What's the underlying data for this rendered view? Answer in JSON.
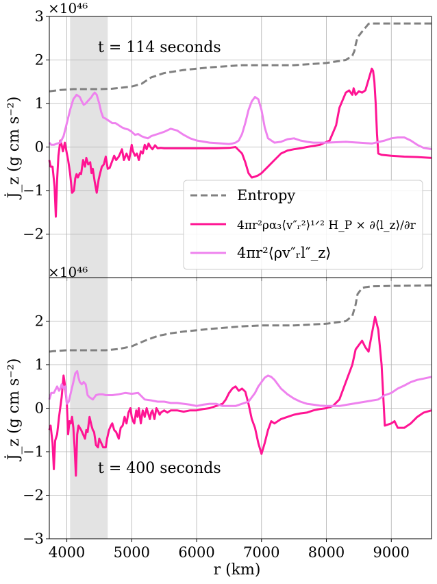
{
  "xlabel": "r (km)",
  "colors": {
    "entropy": "#808080",
    "term1": "#ff1493",
    "term2": "#ee82ee",
    "shade": "#e3e3e3"
  },
  "legend": {
    "placement": "lower-right of top panel",
    "entries": [
      {
        "label": "Entropy",
        "style": "dashed",
        "color": "#808080"
      },
      {
        "label": "4πr²ρα₃⟨v″ᵣ²⟩¹ᐟ² H_P × ∂⟨l_z⟩/∂r",
        "style": "solid",
        "color": "#ff1493"
      },
      {
        "label": "4πr²⟨ρv″ᵣl″_z⟩",
        "style": "solid",
        "color": "#ee82ee"
      }
    ]
  },
  "chart_data": [
    {
      "type": "line",
      "panel": "top",
      "annotation": "t = 114 seconds",
      "ylabel": "J̇_z (g cm s⁻²)",
      "y_scale_label": "×10⁴⁶",
      "xlim": [
        3730,
        9620
      ],
      "ylim": [
        -3,
        3
      ],
      "yticks": [
        3,
        2,
        1,
        0,
        -1,
        -2
      ],
      "xticks": [
        4000,
        5000,
        6000,
        7000,
        8000,
        9000
      ],
      "grid": true,
      "shaded_band": [
        4050,
        4630
      ],
      "series": [
        {
          "key": "entropy",
          "style": "dashed",
          "x": [
            3730,
            3900,
            4100,
            4500,
            4700,
            5000,
            5150,
            5300,
            5500,
            5800,
            6200,
            6700,
            7000,
            7500,
            8000,
            8300,
            8400,
            8430,
            8450,
            8480,
            8550,
            8650,
            8700,
            8800,
            9000,
            9300,
            9620
          ],
          "y": [
            1.28,
            1.31,
            1.33,
            1.33,
            1.34,
            1.39,
            1.45,
            1.6,
            1.7,
            1.77,
            1.83,
            1.88,
            1.88,
            1.88,
            1.93,
            2.0,
            2.1,
            2.2,
            2.35,
            2.52,
            2.65,
            2.83,
            2.84,
            2.84,
            2.84,
            2.84,
            2.84
          ]
        },
        {
          "key": "term1",
          "style": "solid",
          "x": [
            3730,
            3750,
            3780,
            3810,
            3830,
            3850,
            3870,
            3900,
            3920,
            3940,
            3970,
            4000,
            4020,
            4050,
            4080,
            4110,
            4130,
            4150,
            4170,
            4200,
            4220,
            4250,
            4280,
            4300,
            4330,
            4360,
            4380,
            4400,
            4430,
            4460,
            4490,
            4510,
            4540,
            4570,
            4600,
            4630,
            4660,
            4700,
            4730,
            4760,
            4800,
            4850,
            4880,
            4920,
            4960,
            5000,
            5020,
            5050,
            5080,
            5110,
            5140,
            5170,
            5200,
            5230,
            5260,
            5290,
            5320,
            5360,
            5400,
            5450,
            5500,
            5600,
            5800,
            6000,
            6300,
            6500,
            6600,
            6700,
            6750,
            6800,
            6850,
            6900,
            6950,
            7000,
            7100,
            7200,
            7300,
            7400,
            7500,
            7600,
            7700,
            7900,
            8050,
            8150,
            8200,
            8300,
            8350,
            8400,
            8420,
            8450,
            8500,
            8550,
            8600,
            8650,
            8700,
            8720,
            8740,
            8760,
            8780,
            8800,
            8850,
            9000,
            9200,
            9400,
            9620
          ],
          "y": [
            -0.3,
            -0.45,
            -0.45,
            -0.9,
            -1.6,
            -0.75,
            -0.2,
            0.15,
            0.05,
            -0.1,
            0.1,
            -0.15,
            -0.3,
            -0.6,
            -1.05,
            -1.0,
            -0.72,
            -0.62,
            -0.7,
            -0.6,
            -0.62,
            -0.3,
            -0.45,
            -0.25,
            -0.4,
            -0.35,
            -0.6,
            -0.5,
            -0.8,
            -1.05,
            -0.75,
            -0.62,
            -0.45,
            -0.4,
            -0.22,
            -0.5,
            -0.48,
            -0.32,
            -0.2,
            -0.3,
            -0.22,
            -0.05,
            -0.3,
            -0.15,
            -0.3,
            0.05,
            -0.1,
            -0.2,
            -0.15,
            -0.3,
            -0.1,
            -0.15,
            0.05,
            -0.05,
            0.08,
            0.0,
            -0.05,
            0.04,
            -0.03,
            -0.02,
            -0.03,
            -0.03,
            -0.03,
            -0.03,
            -0.03,
            -0.02,
            0.0,
            -0.15,
            -0.35,
            -0.6,
            -0.7,
            -0.68,
            -0.65,
            -0.6,
            -0.45,
            -0.3,
            -0.15,
            -0.08,
            -0.05,
            -0.03,
            0.0,
            0.05,
            0.15,
            0.5,
            0.9,
            1.25,
            1.3,
            1.2,
            1.35,
            1.2,
            1.28,
            1.25,
            1.3,
            1.55,
            1.8,
            1.75,
            1.5,
            1.0,
            0.3,
            -0.15,
            -0.18,
            -0.2,
            -0.22,
            -0.23,
            -0.25
          ]
        },
        {
          "key": "term2",
          "style": "solid",
          "x": [
            3730,
            3760,
            3800,
            3850,
            3900,
            3950,
            4000,
            4050,
            4100,
            4150,
            4200,
            4230,
            4260,
            4290,
            4320,
            4350,
            4380,
            4400,
            4430,
            4460,
            4500,
            4530,
            4560,
            4600,
            4650,
            4700,
            4750,
            4800,
            4850,
            4900,
            4950,
            5000,
            5050,
            5100,
            5150,
            5200,
            5250,
            5300,
            5400,
            5500,
            5600,
            5700,
            5800,
            5900,
            6000,
            6200,
            6400,
            6500,
            6550,
            6600,
            6650,
            6700,
            6750,
            6800,
            6850,
            6900,
            6950,
            7000,
            7050,
            7100,
            7200,
            7300,
            7400,
            7500,
            7600,
            7700,
            7800,
            8000,
            8300,
            8500,
            8700,
            8900,
            9000,
            9100,
            9200,
            9300,
            9400,
            9500,
            9620
          ],
          "y": [
            0.1,
            0.05,
            0.05,
            0.08,
            0.1,
            0.25,
            0.55,
            0.85,
            1.1,
            1.2,
            1.15,
            1.05,
            0.97,
            1.0,
            1.05,
            1.1,
            1.15,
            1.2,
            1.25,
            1.2,
            1.0,
            0.8,
            0.68,
            0.65,
            0.6,
            0.55,
            0.55,
            0.5,
            0.45,
            0.42,
            0.4,
            0.35,
            0.28,
            0.3,
            0.25,
            0.22,
            0.2,
            0.25,
            0.3,
            0.35,
            0.42,
            0.38,
            0.28,
            0.2,
            0.15,
            0.1,
            0.08,
            0.07,
            0.08,
            0.1,
            0.15,
            0.3,
            0.55,
            0.85,
            1.05,
            1.15,
            1.1,
            0.85,
            0.45,
            0.2,
            0.1,
            0.12,
            0.18,
            0.2,
            0.15,
            0.12,
            0.1,
            0.1,
            0.12,
            0.1,
            0.08,
            0.15,
            0.2,
            0.22,
            0.22,
            0.15,
            0.05,
            -0.02,
            -0.05
          ]
        }
      ]
    },
    {
      "type": "line",
      "panel": "bottom",
      "annotation": "t = 400 seconds",
      "ylabel": "J̇_z (g cm s⁻²)",
      "y_scale_label": "×10⁴⁶",
      "xlim": [
        3730,
        9620
      ],
      "ylim": [
        -3,
        3
      ],
      "yticks": [
        2,
        1,
        0,
        -1,
        -2,
        -3
      ],
      "xticks": [
        4000,
        5000,
        6000,
        7000,
        8000,
        9000
      ],
      "xticklabels": [
        "4000",
        "5000",
        "6000",
        "7000",
        "8000",
        "9000"
      ],
      "grid": true,
      "shaded_band": [
        4050,
        4630
      ],
      "series": [
        {
          "key": "entropy",
          "style": "dashed",
          "x": [
            3730,
            3800,
            4000,
            4300,
            4600,
            4800,
            5000,
            5200,
            5400,
            5600,
            5800,
            6200,
            6700,
            7000,
            7500,
            8000,
            8300,
            8400,
            8450,
            8480,
            8550,
            8600,
            8700,
            9000,
            9620
          ],
          "y": [
            1.3,
            1.31,
            1.33,
            1.33,
            1.33,
            1.36,
            1.42,
            1.55,
            1.66,
            1.72,
            1.76,
            1.82,
            1.88,
            1.9,
            1.9,
            1.94,
            2.0,
            2.12,
            2.38,
            2.62,
            2.76,
            2.78,
            2.8,
            2.81,
            2.82
          ]
        },
        {
          "key": "term1",
          "style": "solid",
          "x": [
            3730,
            3750,
            3780,
            3800,
            3820,
            3850,
            3880,
            3920,
            3950,
            3970,
            4000,
            4020,
            4040,
            4060,
            4080,
            4100,
            4120,
            4140,
            4160,
            4180,
            4200,
            4220,
            4250,
            4280,
            4300,
            4320,
            4350,
            4380,
            4400,
            4420,
            4450,
            4480,
            4500,
            4530,
            4560,
            4600,
            4620,
            4650,
            4680,
            4700,
            4730,
            4760,
            4800,
            4830,
            4860,
            4890,
            4920,
            4950,
            4980,
            5000,
            5020,
            5040,
            5070,
            5090,
            5110,
            5140,
            5170,
            5200,
            5230,
            5260,
            5280,
            5300,
            5320,
            5350,
            5380,
            5400,
            5430,
            5450,
            5500,
            5550,
            5600,
            5700,
            5800,
            5900,
            6000,
            6100,
            6200,
            6300,
            6400,
            6450,
            6500,
            6550,
            6600,
            6650,
            6700,
            6750,
            6800,
            6850,
            6900,
            6950,
            7000,
            7050,
            7100,
            7150,
            7200,
            7300,
            7400,
            7500,
            7600,
            7700,
            7800,
            7900,
            8000,
            8100,
            8200,
            8300,
            8400,
            8450,
            8500,
            8550,
            8600,
            8650,
            8700,
            8750,
            8800,
            8850,
            8900,
            9000,
            9050,
            9100,
            9200,
            9300,
            9400,
            9500,
            9620
          ],
          "y": [
            -0.5,
            -0.4,
            -0.8,
            -1.4,
            -0.75,
            -0.6,
            -0.2,
            0.25,
            0.75,
            0.55,
            0.1,
            -0.6,
            -0.3,
            -0.35,
            -0.2,
            -0.45,
            -0.9,
            -1.55,
            -0.6,
            -0.4,
            -0.45,
            -0.5,
            -0.6,
            -0.7,
            -0.5,
            -0.55,
            -0.2,
            -0.4,
            -0.5,
            -0.55,
            -0.85,
            -0.9,
            -0.7,
            -0.8,
            -0.9,
            -0.9,
            -0.7,
            -0.5,
            -0.4,
            -0.35,
            -0.5,
            -0.55,
            -0.7,
            -0.45,
            -0.4,
            -0.2,
            -0.35,
            -0.1,
            0.0,
            -0.2,
            -0.3,
            -0.35,
            -0.05,
            -0.2,
            0.0,
            -0.35,
            -0.05,
            -0.2,
            0.0,
            -0.15,
            -0.25,
            -0.1,
            -0.05,
            -0.25,
            0.0,
            -0.05,
            -0.15,
            -0.1,
            -0.05,
            -0.1,
            -0.05,
            -0.05,
            -0.08,
            -0.05,
            -0.05,
            -0.02,
            0.0,
            0.05,
            0.1,
            0.2,
            0.35,
            0.45,
            0.5,
            0.4,
            0.45,
            0.38,
            0.1,
            -0.25,
            -0.45,
            -0.8,
            -1.05,
            -0.8,
            -0.5,
            -0.3,
            -0.35,
            -0.25,
            -0.2,
            -0.15,
            -0.12,
            -0.1,
            -0.05,
            -0.02,
            0.0,
            0.05,
            0.2,
            0.6,
            1.0,
            1.35,
            1.45,
            1.55,
            1.4,
            1.3,
            1.7,
            2.1,
            1.8,
            1.0,
            -0.4,
            -0.35,
            -0.3,
            -0.45,
            -0.45,
            -0.35,
            -0.2,
            -0.1,
            -0.05
          ]
        },
        {
          "key": "term2",
          "style": "solid",
          "x": [
            3730,
            3760,
            3800,
            3850,
            3880,
            3900,
            3920,
            3950,
            3980,
            4000,
            4030,
            4060,
            4100,
            4130,
            4160,
            4180,
            4200,
            4230,
            4260,
            4290,
            4320,
            4350,
            4400,
            4450,
            4500,
            4550,
            4600,
            4700,
            4800,
            4900,
            5000,
            5100,
            5200,
            5300,
            5400,
            5500,
            5600,
            5700,
            5800,
            5900,
            6000,
            6100,
            6200,
            6300,
            6400,
            6500,
            6600,
            6700,
            6800,
            6850,
            6900,
            6950,
            7000,
            7050,
            7100,
            7150,
            7200,
            7250,
            7300,
            7400,
            7500,
            7600,
            7700,
            7800,
            7900,
            8000,
            8100,
            8200,
            8400,
            8600,
            8800,
            8900,
            9000,
            9100,
            9200,
            9300,
            9400,
            9500,
            9620
          ],
          "y": [
            0.2,
            0.35,
            0.35,
            0.5,
            0.4,
            0.45,
            0.55,
            0.45,
            0.5,
            0.1,
            0.15,
            0.35,
            0.6,
            0.8,
            0.85,
            0.7,
            0.6,
            0.55,
            0.6,
            0.55,
            0.3,
            0.25,
            0.2,
            0.3,
            0.32,
            0.32,
            0.3,
            0.3,
            0.32,
            0.35,
            0.33,
            0.35,
            0.2,
            0.18,
            0.15,
            0.15,
            0.12,
            0.12,
            0.1,
            0.08,
            0.05,
            0.08,
            0.1,
            0.1,
            0.05,
            0.05,
            0.05,
            0.1,
            0.15,
            0.25,
            0.35,
            0.5,
            0.6,
            0.7,
            0.75,
            0.72,
            0.65,
            0.55,
            0.45,
            0.32,
            0.22,
            0.15,
            0.1,
            0.08,
            0.06,
            0.05,
            0.05,
            0.05,
            0.1,
            0.15,
            0.2,
            0.3,
            0.35,
            0.45,
            0.52,
            0.6,
            0.65,
            0.68,
            0.72
          ]
        }
      ]
    }
  ]
}
